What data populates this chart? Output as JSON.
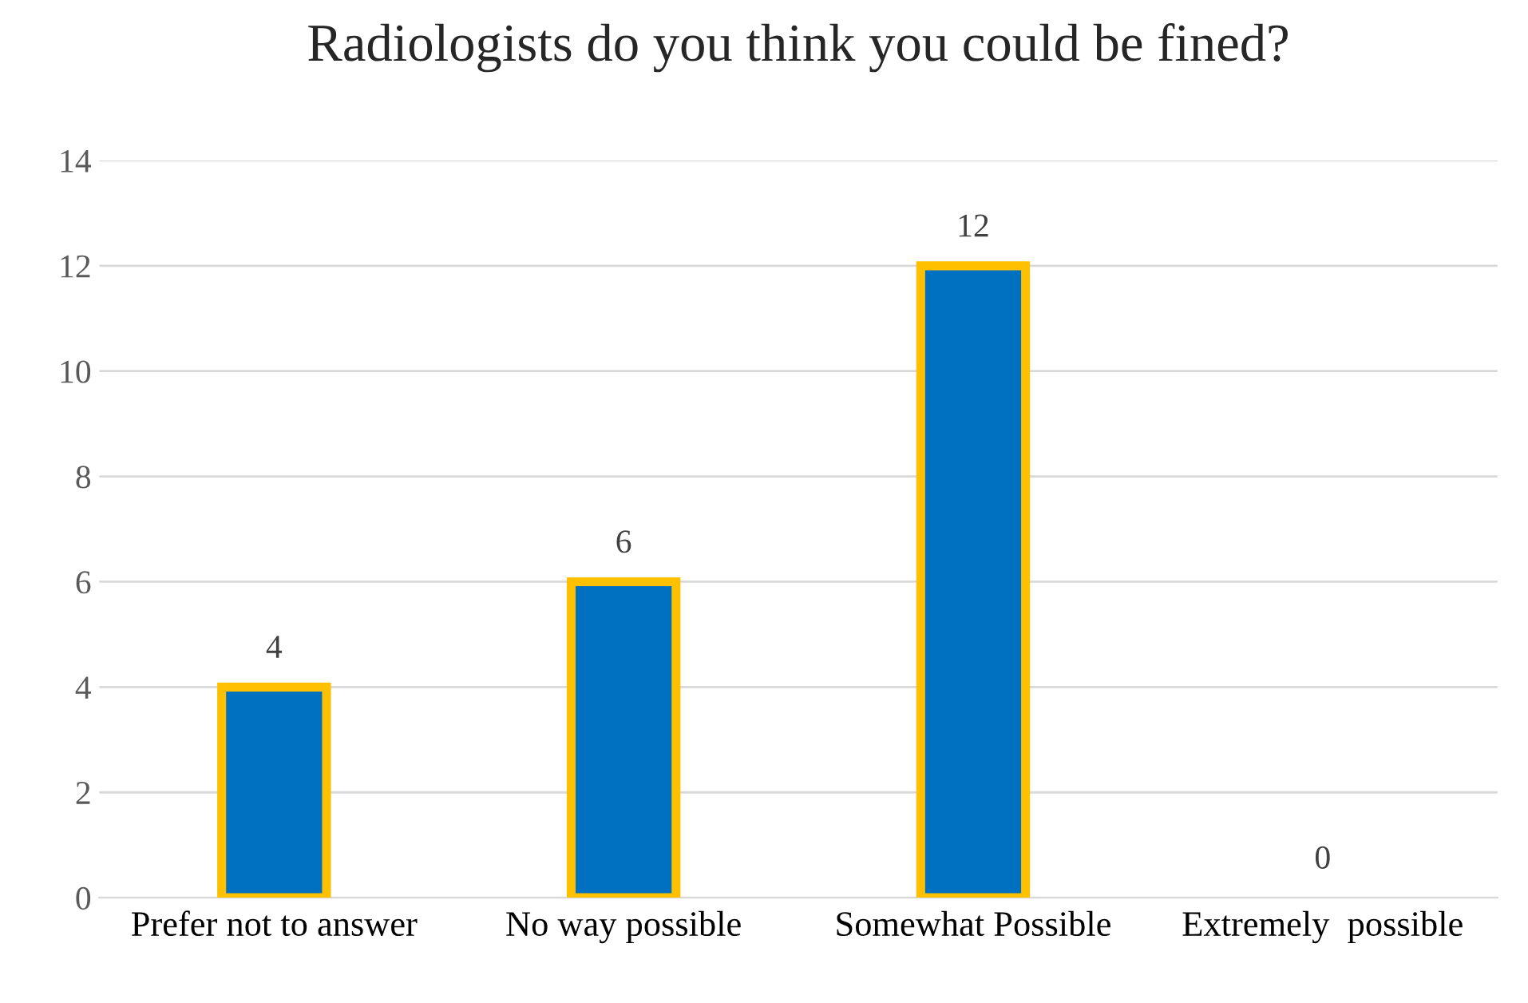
{
  "chart_data": {
    "type": "bar",
    "title": "Radiologists do you think you could be fined?",
    "categories": [
      "Prefer not to answer",
      "No way possible",
      "Somewhat Possible",
      "Extremely  possible"
    ],
    "values": [
      4,
      6,
      12,
      0
    ],
    "color": "#0070c0",
    "ylim": [
      0,
      14
    ],
    "yticks": [
      0,
      2,
      4,
      6,
      8,
      10,
      12,
      14
    ],
    "grid": "y",
    "data_labels": true
  }
}
